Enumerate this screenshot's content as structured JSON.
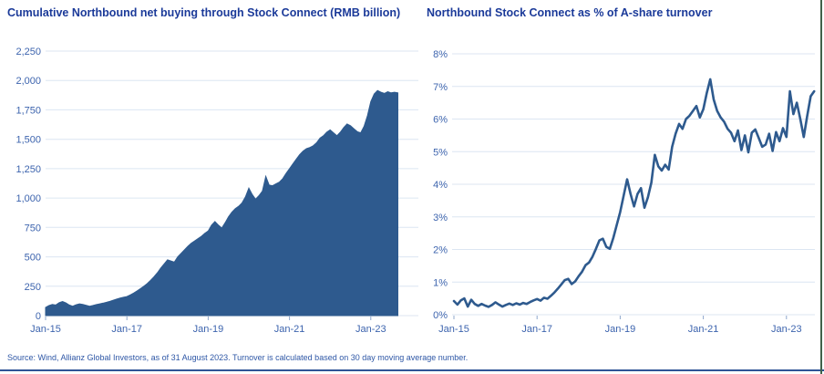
{
  "source_note": "Source: Wind, Allianz Global Investors, as of 31 August 2023. Turnover is calculated based on 30 day moving average number.",
  "colors": {
    "title_text": "#1b3a99",
    "axis_text": "#3d64ae",
    "gridline": "#dce6f2",
    "series": "#2e5a8e",
    "source_text": "#2e57a6",
    "bottom_rule": "#2f5496",
    "right_rule": "#41614a",
    "tick": "#8fa8cc"
  },
  "chart_data": [
    {
      "type": "area",
      "title": "Cumulative Northbound net buying through Stock Connect (RMB billion)",
      "ylabel": "RMB billion",
      "xlim": [
        2015,
        2023.667
      ],
      "ylim": [
        0,
        2250
      ],
      "grid": "horizontal",
      "legend": "none",
      "y_ticks": [
        {
          "v": 0,
          "label": "0"
        },
        {
          "v": 250,
          "label": "250"
        },
        {
          "v": 500,
          "label": "500"
        },
        {
          "v": 750,
          "label": "750"
        },
        {
          "v": 1000,
          "label": "1,000"
        },
        {
          "v": 1250,
          "label": "1,250"
        },
        {
          "v": 1500,
          "label": "1,500"
        },
        {
          "v": 1750,
          "label": "1,750"
        },
        {
          "v": 2000,
          "label": "2,000"
        },
        {
          "v": 2250,
          "label": "2,250"
        }
      ],
      "x_ticks": [
        {
          "v": 2015,
          "label": "Jan-15"
        },
        {
          "v": 2017,
          "label": "Jan-17"
        },
        {
          "v": 2019,
          "label": "Jan-19"
        },
        {
          "v": 2021,
          "label": "Jan-21"
        },
        {
          "v": 2023,
          "label": "Jan-23"
        }
      ],
      "series": [
        [
          2015.0,
          70
        ],
        [
          2015.083,
          85
        ],
        [
          2015.167,
          95
        ],
        [
          2015.25,
          90
        ],
        [
          2015.333,
          110
        ],
        [
          2015.417,
          120
        ],
        [
          2015.5,
          108
        ],
        [
          2015.583,
          90
        ],
        [
          2015.667,
          80
        ],
        [
          2015.75,
          92
        ],
        [
          2015.833,
          100
        ],
        [
          2015.917,
          95
        ],
        [
          2016.0,
          88
        ],
        [
          2016.083,
          80
        ],
        [
          2016.167,
          86
        ],
        [
          2016.25,
          94
        ],
        [
          2016.333,
          100
        ],
        [
          2016.417,
          106
        ],
        [
          2016.5,
          113
        ],
        [
          2016.583,
          121
        ],
        [
          2016.667,
          131
        ],
        [
          2016.75,
          141
        ],
        [
          2016.833,
          150
        ],
        [
          2016.917,
          156
        ],
        [
          2017.0,
          162
        ],
        [
          2017.083,
          176
        ],
        [
          2017.167,
          192
        ],
        [
          2017.25,
          210
        ],
        [
          2017.333,
          230
        ],
        [
          2017.417,
          250
        ],
        [
          2017.5,
          272
        ],
        [
          2017.583,
          300
        ],
        [
          2017.667,
          330
        ],
        [
          2017.75,
          365
        ],
        [
          2017.833,
          405
        ],
        [
          2017.917,
          440
        ],
        [
          2018.0,
          475
        ],
        [
          2018.083,
          465
        ],
        [
          2018.167,
          455
        ],
        [
          2018.25,
          500
        ],
        [
          2018.333,
          530
        ],
        [
          2018.417,
          560
        ],
        [
          2018.5,
          590
        ],
        [
          2018.583,
          615
        ],
        [
          2018.667,
          635
        ],
        [
          2018.75,
          655
        ],
        [
          2018.833,
          675
        ],
        [
          2018.917,
          700
        ],
        [
          2019.0,
          720
        ],
        [
          2019.083,
          770
        ],
        [
          2019.167,
          800
        ],
        [
          2019.25,
          770
        ],
        [
          2019.333,
          745
        ],
        [
          2019.417,
          790
        ],
        [
          2019.5,
          840
        ],
        [
          2019.583,
          880
        ],
        [
          2019.667,
          910
        ],
        [
          2019.75,
          930
        ],
        [
          2019.833,
          960
        ],
        [
          2019.917,
          1010
        ],
        [
          2020.0,
          1085
        ],
        [
          2020.083,
          1030
        ],
        [
          2020.167,
          990
        ],
        [
          2020.25,
          1020
        ],
        [
          2020.333,
          1060
        ],
        [
          2020.417,
          1185
        ],
        [
          2020.5,
          1110
        ],
        [
          2020.583,
          1105
        ],
        [
          2020.667,
          1120
        ],
        [
          2020.75,
          1135
        ],
        [
          2020.833,
          1165
        ],
        [
          2020.917,
          1210
        ],
        [
          2021.0,
          1250
        ],
        [
          2021.083,
          1290
        ],
        [
          2021.167,
          1330
        ],
        [
          2021.25,
          1370
        ],
        [
          2021.333,
          1400
        ],
        [
          2021.417,
          1420
        ],
        [
          2021.5,
          1430
        ],
        [
          2021.583,
          1445
        ],
        [
          2021.667,
          1470
        ],
        [
          2021.75,
          1510
        ],
        [
          2021.833,
          1530
        ],
        [
          2021.917,
          1560
        ],
        [
          2022.0,
          1580
        ],
        [
          2022.083,
          1555
        ],
        [
          2022.167,
          1530
        ],
        [
          2022.25,
          1560
        ],
        [
          2022.333,
          1600
        ],
        [
          2022.417,
          1630
        ],
        [
          2022.5,
          1615
        ],
        [
          2022.583,
          1590
        ],
        [
          2022.667,
          1565
        ],
        [
          2022.75,
          1555
        ],
        [
          2022.833,
          1610
        ],
        [
          2022.917,
          1700
        ],
        [
          2023.0,
          1820
        ],
        [
          2023.083,
          1885
        ],
        [
          2023.167,
          1915
        ],
        [
          2023.25,
          1900
        ],
        [
          2023.333,
          1890
        ],
        [
          2023.417,
          1905
        ],
        [
          2023.5,
          1895
        ],
        [
          2023.583,
          1900
        ],
        [
          2023.667,
          1895
        ]
      ]
    },
    {
      "type": "line",
      "title": "Northbound Stock Connect as % of A-share turnover",
      "ylabel": "% of A-share turnover",
      "xlim": [
        2015,
        2023.667
      ],
      "ylim": [
        0,
        8
      ],
      "grid": "horizontal",
      "legend": "none",
      "y_ticks": [
        {
          "v": 0,
          "label": "0%"
        },
        {
          "v": 1,
          "label": "1%"
        },
        {
          "v": 2,
          "label": "2%"
        },
        {
          "v": 3,
          "label": "3%"
        },
        {
          "v": 4,
          "label": "4%"
        },
        {
          "v": 5,
          "label": "5%"
        },
        {
          "v": 6,
          "label": "6%"
        },
        {
          "v": 7,
          "label": "7%"
        },
        {
          "v": 8,
          "label": "8%"
        }
      ],
      "x_ticks": [
        {
          "v": 2015,
          "label": "Jan-15"
        },
        {
          "v": 2017,
          "label": "Jan-17"
        },
        {
          "v": 2019,
          "label": "Jan-19"
        },
        {
          "v": 2021,
          "label": "Jan-21"
        },
        {
          "v": 2023,
          "label": "Jan-23"
        }
      ],
      "series": [
        [
          2015.0,
          0.42
        ],
        [
          2015.083,
          0.31
        ],
        [
          2015.167,
          0.44
        ],
        [
          2015.25,
          0.5
        ],
        [
          2015.333,
          0.25
        ],
        [
          2015.417,
          0.46
        ],
        [
          2015.5,
          0.33
        ],
        [
          2015.583,
          0.27
        ],
        [
          2015.667,
          0.33
        ],
        [
          2015.75,
          0.28
        ],
        [
          2015.833,
          0.24
        ],
        [
          2015.917,
          0.3
        ],
        [
          2016.0,
          0.38
        ],
        [
          2016.083,
          0.31
        ],
        [
          2016.167,
          0.25
        ],
        [
          2016.25,
          0.3
        ],
        [
          2016.333,
          0.34
        ],
        [
          2016.417,
          0.3
        ],
        [
          2016.5,
          0.35
        ],
        [
          2016.583,
          0.31
        ],
        [
          2016.667,
          0.36
        ],
        [
          2016.75,
          0.33
        ],
        [
          2016.833,
          0.39
        ],
        [
          2016.917,
          0.44
        ],
        [
          2017.0,
          0.48
        ],
        [
          2017.083,
          0.43
        ],
        [
          2017.167,
          0.52
        ],
        [
          2017.25,
          0.49
        ],
        [
          2017.333,
          0.58
        ],
        [
          2017.417,
          0.68
        ],
        [
          2017.5,
          0.8
        ],
        [
          2017.583,
          0.93
        ],
        [
          2017.667,
          1.06
        ],
        [
          2017.75,
          1.1
        ],
        [
          2017.833,
          0.94
        ],
        [
          2017.917,
          1.02
        ],
        [
          2018.0,
          1.18
        ],
        [
          2018.083,
          1.32
        ],
        [
          2018.167,
          1.52
        ],
        [
          2018.25,
          1.6
        ],
        [
          2018.333,
          1.78
        ],
        [
          2018.417,
          2.02
        ],
        [
          2018.5,
          2.28
        ],
        [
          2018.583,
          2.33
        ],
        [
          2018.667,
          2.08
        ],
        [
          2018.75,
          2.02
        ],
        [
          2018.833,
          2.35
        ],
        [
          2018.917,
          2.75
        ],
        [
          2019.0,
          3.15
        ],
        [
          2019.083,
          3.65
        ],
        [
          2019.167,
          4.15
        ],
        [
          2019.25,
          3.7
        ],
        [
          2019.333,
          3.32
        ],
        [
          2019.417,
          3.7
        ],
        [
          2019.5,
          3.88
        ],
        [
          2019.583,
          3.28
        ],
        [
          2019.667,
          3.6
        ],
        [
          2019.75,
          4.05
        ],
        [
          2019.833,
          4.9
        ],
        [
          2019.917,
          4.55
        ],
        [
          2020.0,
          4.42
        ],
        [
          2020.083,
          4.6
        ],
        [
          2020.167,
          4.45
        ],
        [
          2020.25,
          5.15
        ],
        [
          2020.333,
          5.55
        ],
        [
          2020.417,
          5.85
        ],
        [
          2020.5,
          5.7
        ],
        [
          2020.583,
          6.0
        ],
        [
          2020.667,
          6.1
        ],
        [
          2020.75,
          6.25
        ],
        [
          2020.833,
          6.4
        ],
        [
          2020.917,
          6.05
        ],
        [
          2021.0,
          6.3
        ],
        [
          2021.083,
          6.8
        ],
        [
          2021.167,
          7.22
        ],
        [
          2021.25,
          6.6
        ],
        [
          2021.333,
          6.25
        ],
        [
          2021.417,
          6.05
        ],
        [
          2021.5,
          5.92
        ],
        [
          2021.583,
          5.7
        ],
        [
          2021.667,
          5.58
        ],
        [
          2021.75,
          5.32
        ],
        [
          2021.833,
          5.65
        ],
        [
          2021.917,
          5.05
        ],
        [
          2022.0,
          5.5
        ],
        [
          2022.083,
          4.98
        ],
        [
          2022.167,
          5.58
        ],
        [
          2022.25,
          5.68
        ],
        [
          2022.333,
          5.42
        ],
        [
          2022.417,
          5.15
        ],
        [
          2022.5,
          5.22
        ],
        [
          2022.583,
          5.55
        ],
        [
          2022.667,
          5.02
        ],
        [
          2022.75,
          5.6
        ],
        [
          2022.833,
          5.32
        ],
        [
          2022.917,
          5.72
        ],
        [
          2023.0,
          5.45
        ],
        [
          2023.083,
          6.85
        ],
        [
          2023.167,
          6.15
        ],
        [
          2023.25,
          6.5
        ],
        [
          2023.333,
          6.0
        ],
        [
          2023.417,
          5.45
        ],
        [
          2023.5,
          6.1
        ],
        [
          2023.583,
          6.7
        ],
        [
          2023.667,
          6.85
        ]
      ]
    }
  ]
}
